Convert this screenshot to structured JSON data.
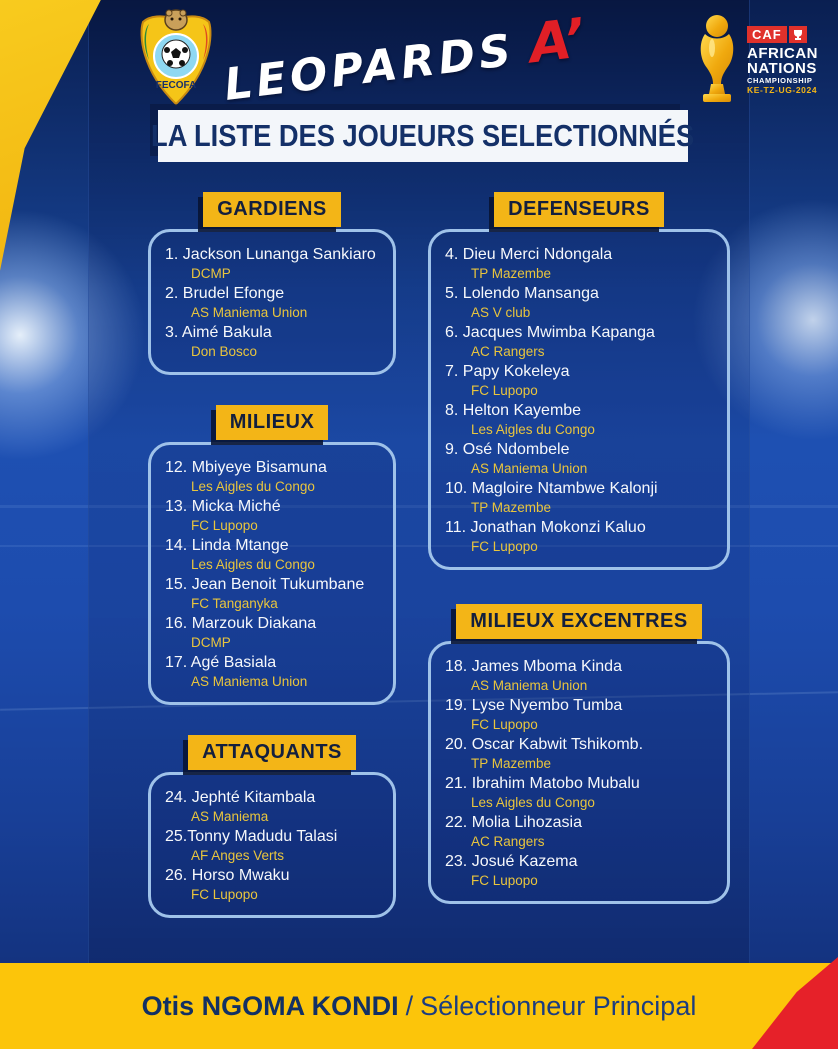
{
  "header": {
    "team_title": "LEOPARDS",
    "team_suffix": "A’",
    "fecofa_label": "FECOFA",
    "caf": {
      "caf_label": "CAF",
      "line1": "AFRICAN",
      "line2": "NATIONS",
      "line3": "CHAMPIONSHIP",
      "line4": "KE-TZ-UG-2024"
    }
  },
  "title_banner": "LA LISTE DES JOUEURS SELECTIONNÉS",
  "sections": [
    {
      "id": "gardiens",
      "column": "left",
      "title": "GARDIENS",
      "players": [
        {
          "label": "1. Jackson Lunanga Sankiaro",
          "club": "DCMP"
        },
        {
          "label": "2. Brudel Efonge",
          "club": "AS Maniema Union"
        },
        {
          "label": "3. Aimé Bakula",
          "club": "Don Bosco"
        }
      ]
    },
    {
      "id": "milieux",
      "column": "left",
      "title": "MILIEUX",
      "players": [
        {
          "label": "12. Mbiyeye Bisamuna",
          "club": "Les Aigles du Congo"
        },
        {
          "label": "13. Micka Miché",
          "club": "FC Lupopo"
        },
        {
          "label": "14. Linda Mtange",
          "club": "Les Aigles du Congo"
        },
        {
          "label": "15. Jean Benoit Tukumbane",
          "club": "FC Tanganyka"
        },
        {
          "label": "16. Marzouk Diakana",
          "club": "DCMP"
        },
        {
          "label": "17. Agé Basiala",
          "club": "AS Maniema Union"
        }
      ]
    },
    {
      "id": "attaquants",
      "column": "left",
      "title": "ATTAQUANTS",
      "players": [
        {
          "label": "24. Jephté Kitambala",
          "club": "AS Maniema"
        },
        {
          "label": "25.Tonny Madudu Talasi",
          "club": "AF Anges Verts"
        },
        {
          "label": "26. Horso Mwaku",
          "club": "FC Lupopo"
        }
      ]
    },
    {
      "id": "defenseurs",
      "column": "right",
      "title": "DEFENSEURS",
      "players": [
        {
          "label": "4. Dieu Merci Ndongala",
          "club": "TP Mazembe"
        },
        {
          "label": "5. Lolendo Mansanga",
          "club": "AS V club"
        },
        {
          "label": "6. Jacques Mwimba Kapanga",
          "club": "AC Rangers"
        },
        {
          "label": "7. Papy Kokeleya",
          "club": "FC Lupopo"
        },
        {
          "label": "8. Helton Kayembe",
          "club": "Les Aigles du Congo"
        },
        {
          "label": "9. Osé Ndombele",
          "club": "AS Maniema Union"
        },
        {
          "label": "10. Magloire Ntambwe Kalonji",
          "club": "TP Mazembe"
        },
        {
          "label": "11. Jonathan Mokonzi Kaluo",
          "club": "FC Lupopo"
        }
      ]
    },
    {
      "id": "milieux-excentres",
      "column": "right",
      "title": "MILIEUX EXCENTRES",
      "players": [
        {
          "label": "18. James Mboma Kinda",
          "club": "AS Maniema Union"
        },
        {
          "label": "19. Lyse Nyembo Tumba",
          "club": "FC Lupopo"
        },
        {
          "label": "20. Oscar Kabwit Tshikomb.",
          "club": "TP Mazembe"
        },
        {
          "label": "21. Ibrahim Matobo Mubalu",
          "club": "Les Aigles du Congo"
        },
        {
          "label": "22. Molia Lihozasia",
          "club": "AC Rangers"
        },
        {
          "label": "23. Josué Kazema",
          "club": "FC Lupopo"
        }
      ]
    }
  ],
  "footer": {
    "coach_name": "Otis NGOMA KONDI",
    "separator": "/",
    "coach_role": "Sélectionneur Principal"
  },
  "colors": {
    "accent_yellow": "#F3B517",
    "footer_yellow": "#FCC50A",
    "accent_red": "#E62129",
    "navy_text": "#143068",
    "club_gold": "#E9C53D",
    "box_border": "#9FC2E9",
    "background_blue": "#1E50B2",
    "background_dark": "#0A1F51",
    "player_white": "#F6F8FB"
  }
}
